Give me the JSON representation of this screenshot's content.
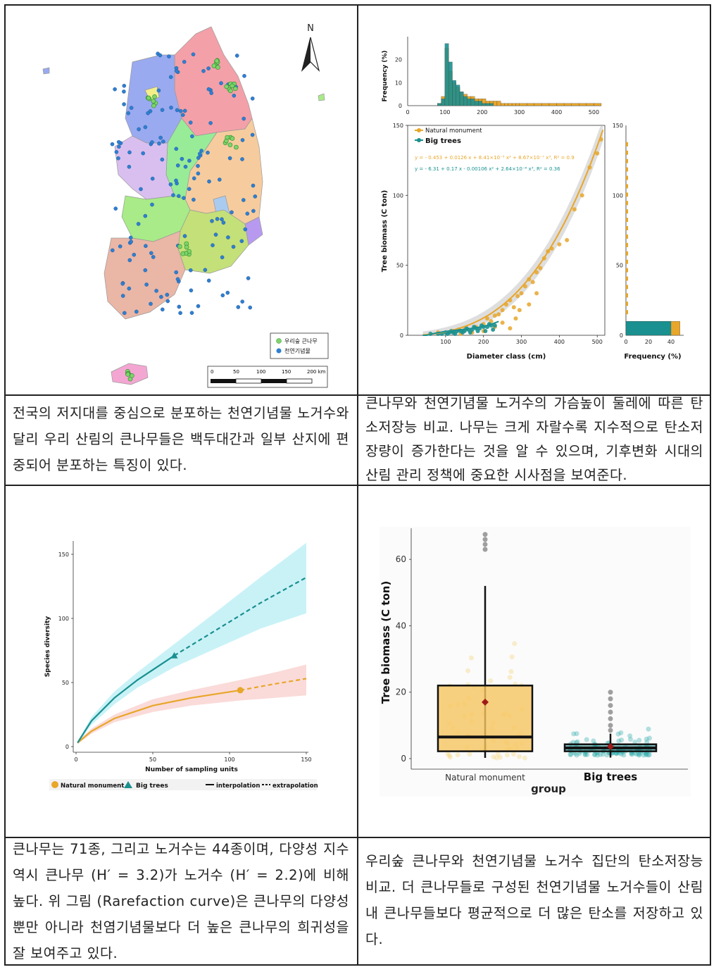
{
  "map": {
    "north_label": "N",
    "legend": [
      {
        "label": "우리숲 큰나무",
        "color": "#7fd46a"
      },
      {
        "label": "천연기념물",
        "color": "#2f7fd0"
      }
    ],
    "scale_ticks": [
      "0",
      "50",
      "100",
      "150",
      "200 km"
    ]
  },
  "caption_1": "전국의 저지대를 중심으로 분포하는 천연기념물 노거수와 달리 우리 산림의 큰나무들은 백두대간과 일부 산지에 편중되어 분포하는 특징이 있다.",
  "caption_2": "큰나무와 천연기념물 노거수의 가슴높이 둘레에 따른 탄소저장능 비교. 나무는 크게 자랄수록 지수적으로 탄소저장량이 증가한다는 것을 알 수 있으며, 기후변화 시대의 산림 관리 정책에 중요한 시사점을 보여준다.",
  "caption_3": "큰나무는 71종, 그리고 노거수는 44종이며, 다양성 지수 역시 큰나무 (H′ = 3.2)가 노거수 (H′ = 2.2)에 비해 높다. 위 그림 (Rarefaction curve)은 큰나무의 다양성뿐만 아니라 천염기념물보다 더 높은 큰나무의 희귀성을 잘 보여주고 있다.",
  "caption_4": "우리숲 큰나무와 천연기념물 노거수 집단의 탄소저장능 비교. 더 큰나무들로 구성된 천연기념물 노거수들이 산림 내 큰나무들보다 평균적으로 더 많은 탄소를 저장하고 있다.",
  "colors": {
    "natural": "#e8a62a",
    "big": "#1a9090"
  },
  "chart_data": [
    {
      "type": "scatter",
      "xlabel": "Diameter class (cm)",
      "ylabel": "Tree biomass (C ton)",
      "xlim": [
        0,
        520
      ],
      "ylim": [
        0,
        150
      ],
      "xticks": [
        100,
        200,
        300,
        400,
        500
      ],
      "yticks": [
        0,
        50,
        100,
        150
      ],
      "legend": [
        "Natural monument",
        "Big trees"
      ],
      "equations": [
        "y = - 0.453 + 0.0126 x + 8.41×10⁻⁵ x² + 8.67×10⁻⁷ x³, R² = 0.9",
        "y = - 6.31 + 0.17 x - 0.00106 x² + 2.64×10⁻⁶ x³, R² = 0.36"
      ],
      "top_hist": {
        "ylabel": "Frequency (%)",
        "yticks": [
          0,
          10,
          20
        ],
        "xticks": [
          0,
          100,
          200,
          300,
          400,
          500
        ],
        "bins_x": [
          80,
          90,
          100,
          110,
          120,
          130,
          140,
          150,
          160,
          170,
          180,
          190,
          200,
          210,
          220,
          230,
          240,
          250,
          260,
          270,
          280,
          290,
          300,
          320,
          340,
          360,
          380,
          400,
          420,
          440,
          460,
          480,
          500
        ],
        "natural": [
          1,
          4,
          25,
          15,
          10,
          8,
          6,
          5,
          4,
          4,
          3,
          3,
          3,
          2,
          2,
          2,
          2,
          1,
          1,
          1,
          1,
          1,
          1,
          1,
          1,
          1,
          1,
          1,
          1,
          1,
          1,
          1,
          1
        ],
        "big": [
          1,
          3,
          27,
          19,
          11,
          9,
          6,
          4,
          3,
          3,
          2,
          2,
          1,
          1,
          1,
          0,
          0,
          0,
          0,
          0,
          0,
          0,
          0,
          0,
          0,
          0,
          0,
          0,
          0,
          0,
          0,
          0,
          0
        ]
      },
      "right_hist": {
        "xlabel": "Frequency (%)",
        "xticks": [
          0,
          20,
          40
        ],
        "yticks": [
          0,
          50,
          100,
          150
        ]
      },
      "natural_points": [
        [
          80,
          2
        ],
        [
          120,
          3
        ],
        [
          150,
          4
        ],
        [
          180,
          6
        ],
        [
          200,
          8
        ],
        [
          210,
          12
        ],
        [
          220,
          10
        ],
        [
          230,
          14
        ],
        [
          240,
          15
        ],
        [
          250,
          18
        ],
        [
          260,
          22
        ],
        [
          270,
          25
        ],
        [
          280,
          20
        ],
        [
          290,
          28
        ],
        [
          300,
          30
        ],
        [
          310,
          35
        ],
        [
          320,
          40
        ],
        [
          330,
          38
        ],
        [
          340,
          45
        ],
        [
          350,
          48
        ],
        [
          360,
          55
        ],
        [
          370,
          60
        ],
        [
          380,
          62
        ],
        [
          400,
          65
        ],
        [
          420,
          68
        ],
        [
          440,
          90
        ],
        [
          460,
          100
        ],
        [
          480,
          120
        ],
        [
          500,
          130
        ],
        [
          510,
          140
        ],
        [
          270,
          5
        ],
        [
          285,
          12
        ],
        [
          295,
          18
        ],
        [
          250,
          9
        ],
        [
          230,
          6
        ],
        [
          320,
          22
        ],
        [
          340,
          30
        ],
        [
          200,
          3
        ],
        [
          170,
          2
        ],
        [
          140,
          1
        ]
      ],
      "big_points": [
        [
          60,
          1
        ],
        [
          80,
          1
        ],
        [
          90,
          1
        ],
        [
          100,
          2
        ],
        [
          110,
          2
        ],
        [
          120,
          2
        ],
        [
          130,
          3
        ],
        [
          140,
          3
        ],
        [
          150,
          3
        ],
        [
          160,
          4
        ],
        [
          170,
          4
        ],
        [
          180,
          5
        ],
        [
          190,
          5
        ],
        [
          200,
          6
        ],
        [
          210,
          6
        ],
        [
          220,
          7
        ],
        [
          230,
          7
        ],
        [
          105,
          1
        ],
        [
          125,
          1
        ],
        [
          145,
          2
        ],
        [
          165,
          2
        ],
        [
          185,
          3
        ],
        [
          205,
          3
        ],
        [
          225,
          4
        ],
        [
          115,
          3
        ],
        [
          135,
          4
        ],
        [
          155,
          5
        ],
        [
          175,
          6
        ],
        [
          195,
          7
        ],
        [
          215,
          8
        ]
      ]
    },
    {
      "type": "line",
      "xlabel": "Number of sampling units",
      "ylabel": "Species diversity",
      "xlim": [
        0,
        150
      ],
      "ylim": [
        0,
        160
      ],
      "xticks": [
        0,
        50,
        100,
        150
      ],
      "yticks": [
        0,
        50,
        100,
        150
      ],
      "legend": [
        "Natural monument",
        "Big trees",
        "interpolation",
        "extrapolation"
      ],
      "series": [
        {
          "name": "Natural monument",
          "observed": [
            107,
            44
          ],
          "x": [
            1,
            10,
            25,
            50,
            75,
            107,
            130,
            150
          ],
          "y": [
            3,
            12,
            22,
            32,
            38,
            44,
            49,
            53
          ],
          "lower": [
            2,
            10,
            19,
            27,
            32,
            36,
            38,
            40
          ],
          "upper": [
            4,
            14,
            25,
            37,
            44,
            52,
            58,
            64
          ]
        },
        {
          "name": "Big trees",
          "observed": [
            64,
            71
          ],
          "x": [
            1,
            10,
            25,
            40,
            64,
            90,
            120,
            150
          ],
          "y": [
            3,
            20,
            38,
            52,
            71,
            90,
            112,
            132
          ],
          "lower": [
            2,
            17,
            33,
            46,
            62,
            76,
            92,
            104
          ],
          "upper": [
            4,
            23,
            43,
            58,
            80,
            104,
            132,
            159
          ]
        }
      ]
    },
    {
      "type": "box",
      "xlabel": "group",
      "ylabel": "Tree biomass (C ton)",
      "categories": [
        "Natural monument",
        "Big trees"
      ],
      "ylim": [
        0,
        70
      ],
      "yticks": [
        0,
        20,
        40,
        60
      ],
      "boxes": [
        {
          "q1": 2.2,
          "median": 6.5,
          "q3": 22,
          "whisker_low": 0.2,
          "whisker_high": 52,
          "mean": 17,
          "outliers": [
            63,
            64.5,
            66,
            67.5
          ]
        },
        {
          "q1": 2.2,
          "median": 3.2,
          "q3": 4.3,
          "whisker_low": 0.3,
          "whisker_high": 7.5,
          "mean": 3.6,
          "outliers": [
            8.5,
            10,
            12,
            14,
            16,
            18,
            20
          ]
        }
      ]
    }
  ]
}
